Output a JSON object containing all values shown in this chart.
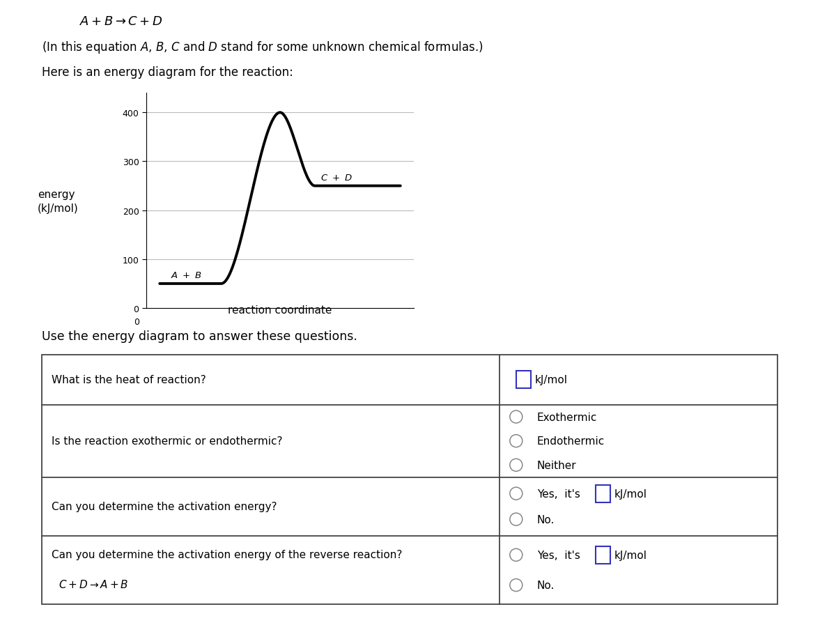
{
  "bg_color": "#ffffff",
  "text_color": "#000000",
  "ab_level": 50,
  "cd_level": 250,
  "peak_level": 400,
  "yticks": [
    0,
    100,
    200,
    300,
    400
  ],
  "xlabel": "reaction coordinate",
  "input_box_color": "#3333bb"
}
